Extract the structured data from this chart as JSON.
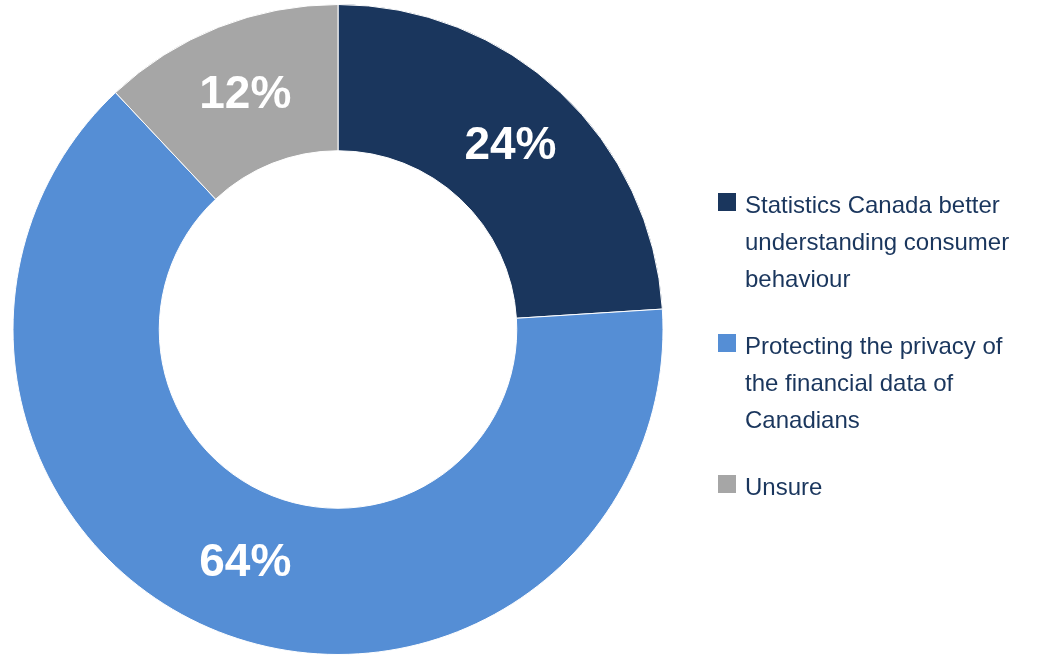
{
  "chart_data": {
    "type": "donut",
    "categories": [
      "Statistics Canada better understanding consumer behaviour",
      "Protecting the privacy of the financial data of Canadians",
      "Unsure"
    ],
    "values": [
      24,
      64,
      12
    ],
    "colors": [
      "#1a365d",
      "#558ed5",
      "#a6a6a6"
    ],
    "value_labels": [
      "24%",
      "64%",
      "12%"
    ],
    "legend": "right"
  }
}
